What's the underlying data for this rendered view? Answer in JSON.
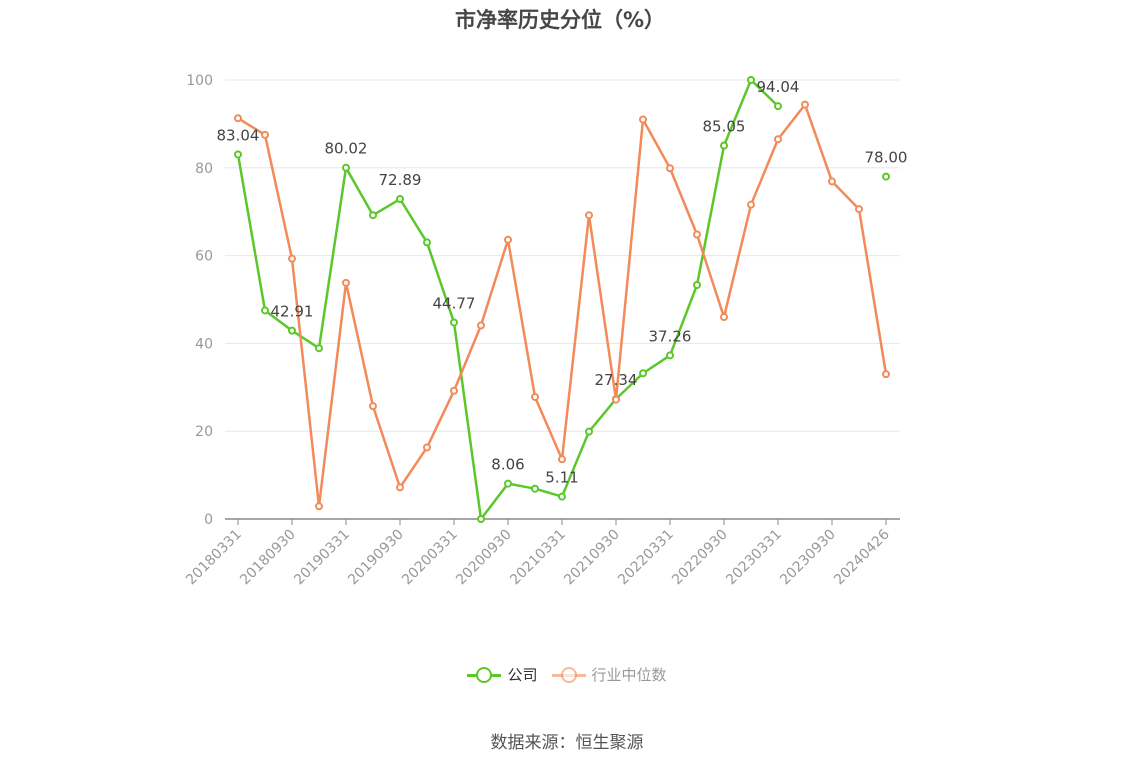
{
  "title": "市净率历史分位（%）",
  "source": "数据来源：恒生聚源",
  "colors": {
    "company": "#5cc72a",
    "industry": "#f28a5a",
    "grid": "#e6e6ef",
    "axis": "#888888"
  },
  "chart_data": {
    "type": "line",
    "title": "市净率历史分位（%）",
    "ylim": [
      0,
      100
    ],
    "yticks": [
      "0",
      "20",
      "40",
      "60",
      "80",
      "100"
    ],
    "xtick_labels": [
      "20180331",
      "20180930",
      "20190331",
      "20190930",
      "20200331",
      "20200930",
      "20210331",
      "20210930",
      "20220331",
      "20220930",
      "20230331",
      "20230930",
      "20240426"
    ],
    "x": [
      "20180331",
      "20180630",
      "20180930",
      "20181231",
      "20190331",
      "20190630",
      "20190930",
      "20191231",
      "20200331",
      "20200630",
      "20200930",
      "20201231",
      "20210331",
      "20210630",
      "20210930",
      "20211231",
      "20220331",
      "20220630",
      "20220930",
      "20221231",
      "20230331",
      "20230630",
      "20230930",
      "20231231",
      "20240426"
    ],
    "grid": true,
    "legend_position": "bottom",
    "series": [
      {
        "name": "公司",
        "values": [
          83.04,
          47.5,
          42.91,
          38.9,
          80.02,
          69.2,
          72.89,
          63.0,
          44.77,
          0.0,
          8.06,
          6.9,
          5.11,
          19.9,
          27.34,
          33.2,
          37.26,
          53.3,
          85.05,
          100.0,
          94.04,
          null,
          null,
          null,
          78.0
        ],
        "labels": [
          "83.04",
          "",
          "42.91",
          "",
          "80.02",
          "",
          "72.89",
          "",
          "44.77",
          "",
          "8.06",
          "",
          "5.11",
          "",
          "27.34",
          "",
          "37.26",
          "",
          "85.05",
          "",
          "94.04",
          "",
          "",
          "",
          "78.00"
        ]
      },
      {
        "name": "行业中位数",
        "values": [
          91.3,
          87.5,
          59.3,
          2.9,
          53.8,
          25.7,
          7.2,
          16.3,
          29.2,
          44.1,
          63.6,
          27.8,
          13.6,
          69.2,
          27.2,
          91.0,
          79.9,
          64.8,
          46.0,
          71.6,
          86.5,
          94.4,
          76.9,
          70.6,
          33.0
        ]
      }
    ]
  }
}
